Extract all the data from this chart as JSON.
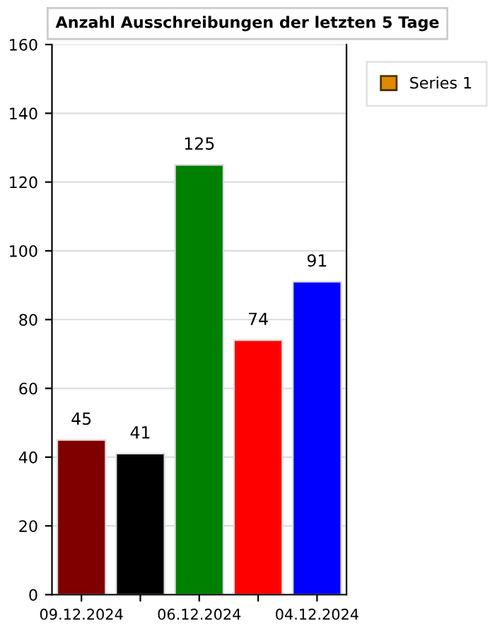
{
  "chart_data": {
    "type": "bar",
    "title": "Anzahl Ausschreibungen der letzten 5 Tage",
    "categories": [
      "09.12.2024",
      null,
      "06.12.2024",
      null,
      "04.12.2024"
    ],
    "series": [
      {
        "name": "Series 1",
        "color": "#e08a00",
        "colors": [
          "#800000",
          "#000000",
          "#008000",
          "#ff0000",
          "#0000ff"
        ],
        "values": [
          45,
          41,
          125,
          74,
          91
        ]
      }
    ],
    "ylim": [
      0,
      160
    ],
    "yticks": [
      0,
      20,
      40,
      60,
      80,
      100,
      120,
      140,
      160
    ],
    "grid": "y",
    "legend": "top right",
    "data_labels": true
  }
}
